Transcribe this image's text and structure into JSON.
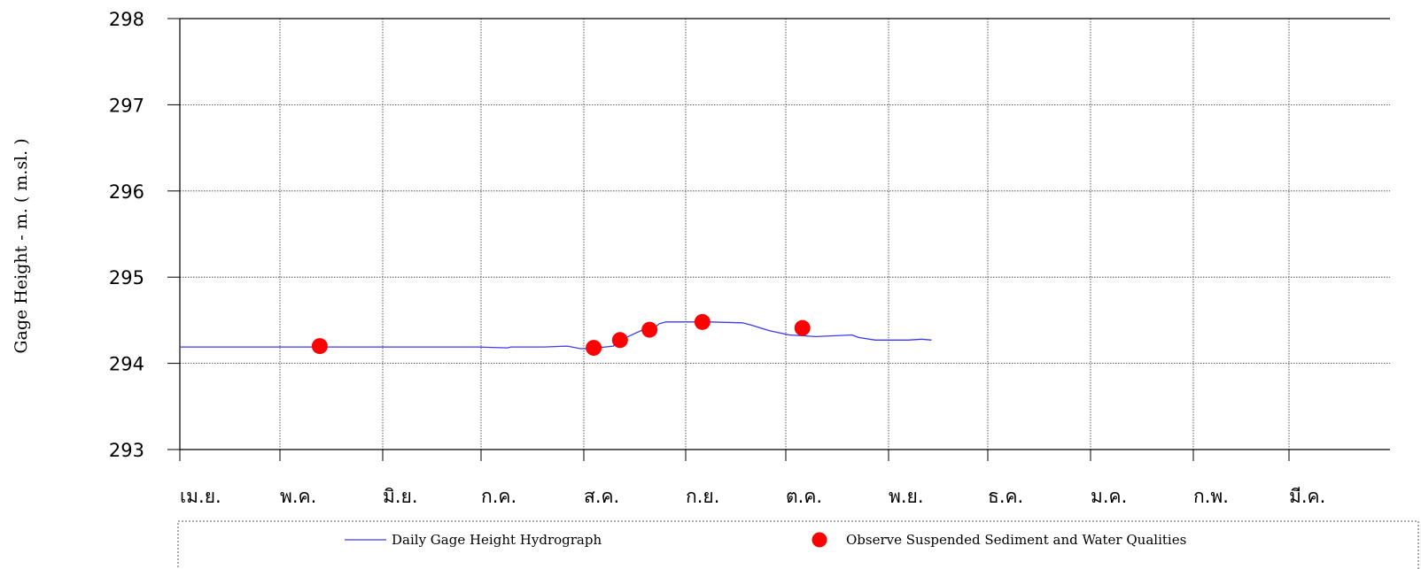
{
  "chart_data": {
    "type": "line",
    "ylabel": "Gage Height   -   m.   ( m.sl. )",
    "ylim": [
      293,
      298
    ],
    "yticks": [
      "293",
      "294",
      "295",
      "296",
      "297",
      "298"
    ],
    "x_categories": [
      "เม.ย.",
      "พ.ค.",
      "มิ.ย.",
      "ก.ค.",
      "ส.ค.",
      "ก.ย.",
      "ต.ค.",
      "พ.ย.",
      "ธ.ค.",
      "ม.ค.",
      "ก.พ.",
      "มี.ค."
    ],
    "x_unit": "day of water year (0 = 1 April)",
    "grid": true,
    "series": [
      {
        "name": "Daily Gage Height Hydrograph",
        "kind": "line",
        "color": "#3a3af0",
        "points": [
          [
            0,
            294.19
          ],
          [
            20,
            294.19
          ],
          [
            40,
            294.19
          ],
          [
            60,
            294.19
          ],
          [
            90,
            294.19
          ],
          [
            99,
            294.18
          ],
          [
            100,
            294.19
          ],
          [
            110,
            294.19
          ],
          [
            117,
            294.2
          ],
          [
            121,
            294.17
          ],
          [
            125,
            294.17
          ],
          [
            126,
            294.18
          ],
          [
            131,
            294.2
          ],
          [
            133,
            294.26
          ],
          [
            136,
            294.32
          ],
          [
            140,
            294.39
          ],
          [
            143,
            294.4
          ],
          [
            145,
            294.46
          ],
          [
            147,
            294.48
          ],
          [
            160,
            294.48
          ],
          [
            170,
            294.47
          ],
          [
            173,
            294.44
          ],
          [
            178,
            294.38
          ],
          [
            184,
            294.33
          ],
          [
            188,
            294.32
          ],
          [
            192,
            294.31
          ],
          [
            198,
            294.32
          ],
          [
            203,
            294.33
          ],
          [
            205,
            294.3
          ],
          [
            210,
            294.27
          ],
          [
            220,
            294.27
          ],
          [
            224,
            294.28
          ],
          [
            227,
            294.27
          ]
        ]
      },
      {
        "name": "Observe Suspended Sediment and Water Qualities",
        "kind": "scatter",
        "color": "#ff0000",
        "points": [
          [
            42,
            294.2
          ],
          [
            125,
            294.18
          ],
          [
            133,
            294.27
          ],
          [
            142,
            294.39
          ],
          [
            158,
            294.48
          ],
          [
            188,
            294.41
          ]
        ]
      }
    ],
    "legend": {
      "placement": "bottom",
      "line_label": "Daily Gage Height Hydrograph",
      "marker_label": "Observe Suspended Sediment and Water Qualities"
    }
  }
}
